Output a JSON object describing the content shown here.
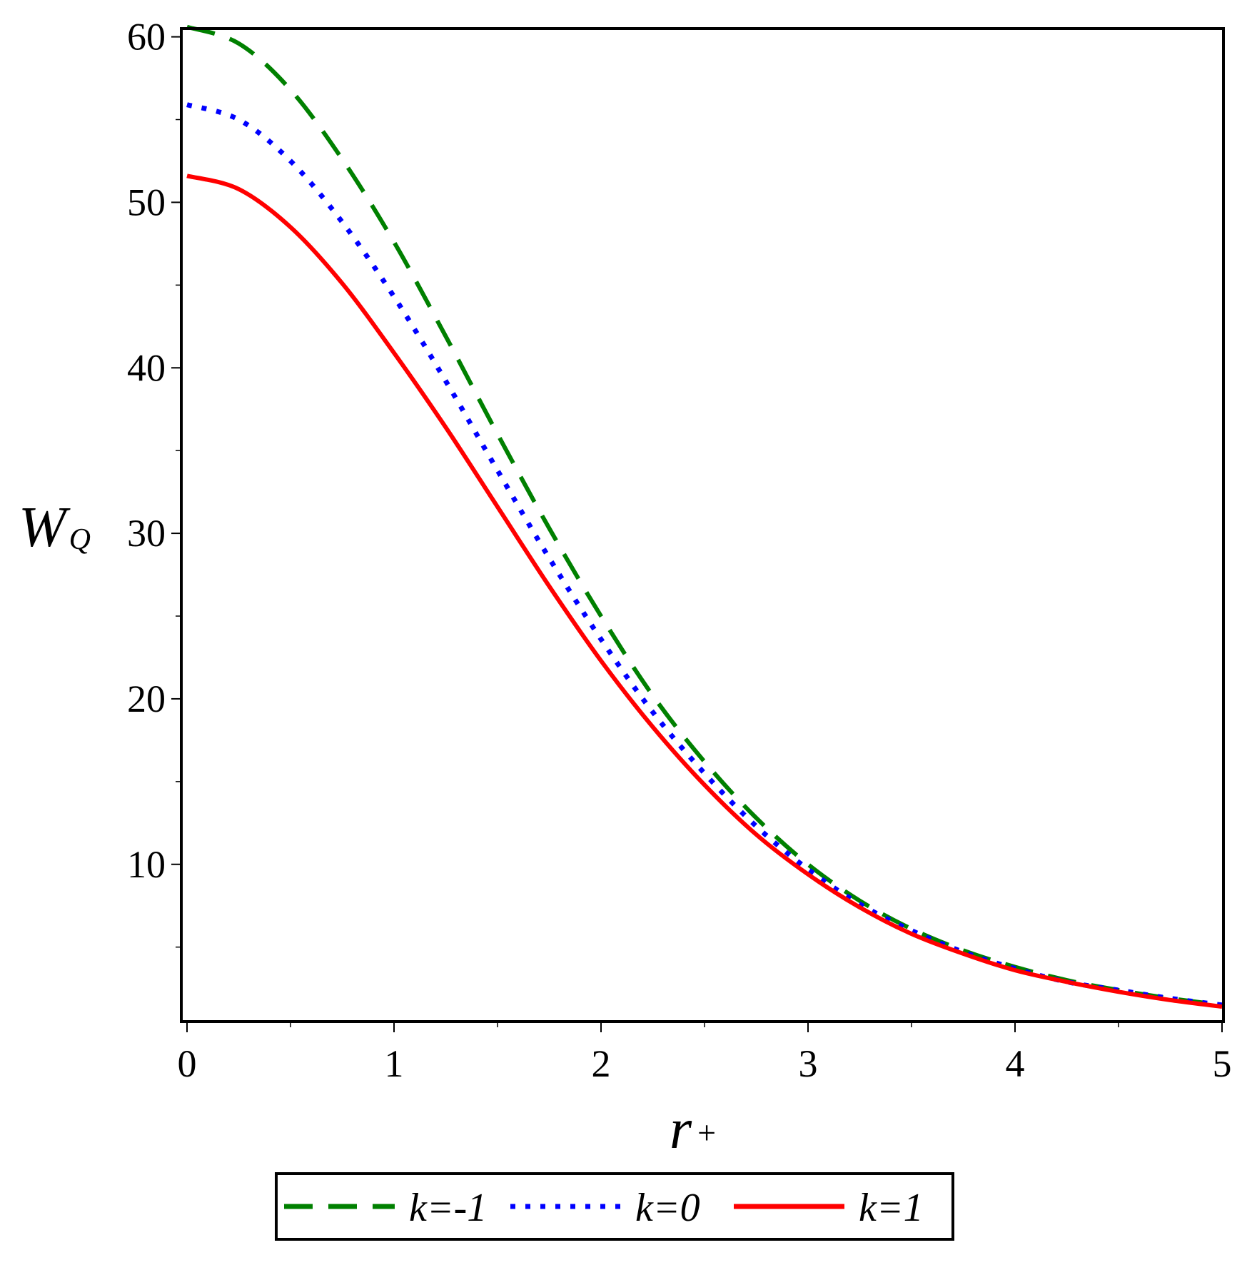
{
  "chart_data": {
    "type": "line",
    "title": "",
    "xlabel": "r",
    "xlabel_sub": "+",
    "ylabel": "W",
    "ylabel_sub": "Q",
    "xlim": [
      0,
      5
    ],
    "ylim": [
      0.5,
      60.5
    ],
    "x_ticks": [
      0,
      1,
      2,
      3,
      4,
      5
    ],
    "x_tick_labels": [
      "0",
      "1",
      "2",
      "3",
      "4",
      "5"
    ],
    "y_ticks": [
      10,
      20,
      30,
      40,
      50,
      60
    ],
    "y_tick_labels": [
      "10",
      "20",
      "30",
      "40",
      "50",
      "60"
    ],
    "grid": false,
    "legend_position": "bottom",
    "series": [
      {
        "name": "k=-1",
        "color": "#008000",
        "style": "dashed",
        "x": [
          0,
          0.25,
          0.5,
          0.75,
          1.0,
          1.25,
          1.5,
          1.75,
          2.0,
          2.25,
          2.5,
          2.75,
          3.0,
          3.25,
          3.5,
          3.75,
          4.0,
          4.25,
          4.5,
          4.75,
          5.0
        ],
        "y": [
          60.6,
          59.6,
          56.8,
          52.6,
          47.6,
          41.9,
          36.0,
          30.3,
          25.0,
          20.2,
          16.2,
          12.8,
          10.0,
          7.8,
          6.1,
          4.8,
          3.8,
          3.0,
          2.4,
          1.9,
          1.5
        ]
      },
      {
        "name": "k=0",
        "color": "#0000ff",
        "style": "dotted",
        "x": [
          0,
          0.25,
          0.5,
          0.75,
          1.0,
          1.25,
          1.5,
          1.75,
          2.0,
          2.25,
          2.5,
          2.75,
          3.0,
          3.25,
          3.5,
          3.75,
          4.0,
          4.25,
          4.5,
          4.75,
          5.0
        ],
        "y": [
          55.9,
          55.0,
          52.5,
          48.8,
          44.3,
          39.2,
          33.8,
          28.5,
          23.6,
          19.2,
          15.5,
          12.3,
          9.7,
          7.6,
          6.0,
          4.7,
          3.7,
          2.9,
          2.4,
          1.9,
          1.5
        ]
      },
      {
        "name": "k=1",
        "color": "#ff0000",
        "style": "solid",
        "x": [
          0,
          0.25,
          0.5,
          0.75,
          1.0,
          1.25,
          1.5,
          1.75,
          2.0,
          2.25,
          2.5,
          2.75,
          3.0,
          3.25,
          3.5,
          3.75,
          4.0,
          4.25,
          4.5,
          4.75,
          5.0
        ],
        "y": [
          51.6,
          50.8,
          48.5,
          45.1,
          40.9,
          36.4,
          31.6,
          26.8,
          22.3,
          18.3,
          14.8,
          11.8,
          9.4,
          7.4,
          5.8,
          4.6,
          3.6,
          2.9,
          2.3,
          1.8,
          1.4
        ]
      }
    ]
  }
}
